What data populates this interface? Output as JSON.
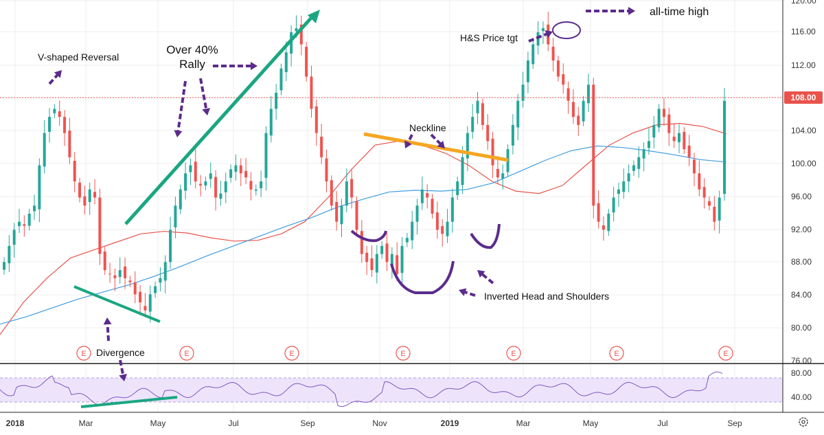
{
  "chart_data": {
    "type": "candlestick",
    "x_ticks": [
      "2018",
      "Mar",
      "May",
      "Jul",
      "Sep",
      "Nov",
      "2019",
      "Mar",
      "May",
      "Jul",
      "Sep"
    ],
    "y_ticks": [
      "120.00",
      "116.00",
      "112.00",
      "108.00",
      "104.00",
      "100.00",
      "96.00",
      "92.00",
      "88.00",
      "84.00",
      "80.00",
      "76.00"
    ],
    "ylim": [
      75.5,
      120.5
    ],
    "current_price": 108.0,
    "current_price_label": "108.00",
    "earnings_marker_label": "E",
    "earnings_marker_count": 7,
    "ohlc_approx_closes": [
      88.0,
      90.0,
      92.0,
      93.0,
      92.5,
      94.0,
      95.0,
      100.0,
      104.0,
      106.0,
      107.0,
      106.0,
      104.0,
      101.0,
      98.0,
      96.0,
      95.0,
      97.0,
      96.0,
      89.0,
      87.0,
      86.5,
      86.0,
      87.0,
      86.0,
      85.5,
      84.0,
      83.0,
      82.0,
      84.0,
      85.0,
      86.0,
      88.0,
      92.0,
      95.0,
      97.0,
      99.0,
      100.0,
      98.0,
      97.5,
      98.0,
      99.0,
      96.0,
      96.5,
      98.0,
      99.5,
      100.0,
      99.0,
      98.5,
      97.0,
      97.0,
      98.0,
      104.0,
      107.0,
      109.0,
      112.0,
      114.0,
      116.5,
      117.0,
      115.0,
      111.0,
      107.0,
      104.0,
      101.0,
      98.0,
      95.0,
      93.0,
      95.0,
      98.0,
      96.0,
      92.0,
      89.0,
      88.0,
      87.0,
      89.0,
      90.0,
      88.0,
      89.0,
      86.5,
      90.0,
      91.0,
      93.0,
      95.0,
      97.0,
      96.0,
      94.0,
      92.0,
      91.5,
      93.0,
      96.0,
      98.0,
      101.0,
      104.0,
      106.0,
      108.0,
      105.0,
      103.0,
      100.0,
      98.5,
      99.0,
      102.0,
      105.0,
      108.0,
      110.0,
      113.0,
      115.0,
      116.5,
      117.0,
      115.0,
      113.0,
      111.0,
      110.0,
      108.0,
      106.0,
      105.0,
      108.0,
      110.0,
      95.0,
      93.0,
      92.0,
      94.0,
      96.0,
      97.0,
      98.0,
      99.0,
      100.0,
      101.0,
      102.0,
      103.0,
      105.0,
      107.0,
      106.0,
      104.0,
      103.0,
      104.0,
      102.0,
      101.0,
      99.0,
      97.0,
      96.0,
      95.0,
      93.0,
      96.0,
      108.0
    ],
    "series": [
      {
        "name": "",
        "kind": "moving-average-short",
        "color": "#e8534b",
        "values": [
          79.0,
          83.0,
          86.0,
          88.5,
          89.5,
          90.5,
          91.5,
          91.8,
          91.6,
          91.0,
          90.6,
          90.7,
          91.5,
          93.0,
          96.0,
          99.5,
          102.5,
          103.0,
          102.5,
          101.5,
          100.0,
          98.0,
          96.8,
          96.5,
          97.5,
          100.0,
          102.5,
          104.0,
          105.0,
          105.2,
          104.8,
          103.9
        ]
      },
      {
        "name": "",
        "kind": "moving-average-long",
        "color": "#3f9be0",
        "values": [
          80.3,
          81.2,
          82.3,
          83.4,
          84.3,
          85.2,
          86.3,
          87.5,
          88.8,
          90.0,
          91.2,
          92.4,
          93.5,
          94.8,
          95.8,
          96.7,
          96.9,
          96.8,
          97.0,
          97.8,
          99.2,
          100.6,
          101.8,
          102.4,
          102.2,
          101.8,
          101.3,
          100.7,
          100.4
        ]
      }
    ],
    "rsi": {
      "y_ticks": [
        "80.00",
        "40.00"
      ],
      "ylim": [
        25,
        85
      ],
      "band": [
        30,
        70
      ],
      "color": "#7e57c2"
    },
    "annotations": {
      "v_shaped": "V-shaped Reversal",
      "rally_line1": "Over 40%",
      "rally_line2": "Rally",
      "neckline": "Neckline",
      "hs_target": "H&S Price tgt",
      "all_time_high": "all-time high",
      "inverted_hs": "Inverted Head and Shoulders",
      "divergence": "Divergence"
    }
  }
}
